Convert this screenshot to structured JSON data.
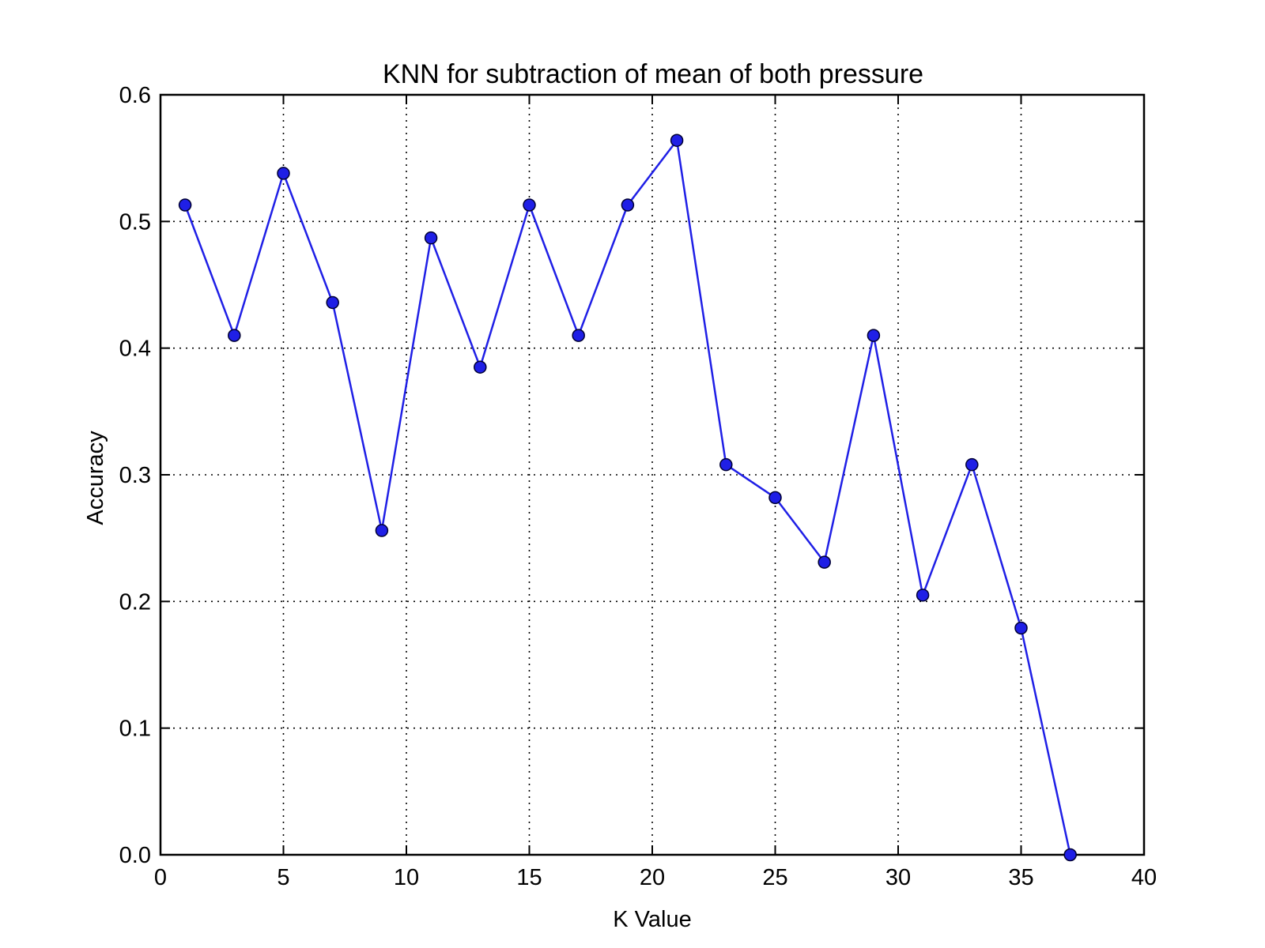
{
  "chart_data": {
    "type": "line",
    "title": "KNN for subtraction of mean of both pressure",
    "xlabel": "K Value",
    "ylabel": "Accuracy",
    "xlim": [
      0,
      40
    ],
    "ylim": [
      0,
      0.6
    ],
    "x_ticks": [
      "0",
      "5",
      "10",
      "15",
      "20",
      "25",
      "30",
      "35",
      "40"
    ],
    "y_ticks": [
      "0.0",
      "0.1",
      "0.2",
      "0.3",
      "0.4",
      "0.5",
      "0.6"
    ],
    "grid": true,
    "series": [
      {
        "color": "#1f1fe6",
        "marker": "filled-circle",
        "x": [
          1,
          3,
          5,
          7,
          9,
          11,
          13,
          15,
          17,
          19,
          21,
          23,
          25,
          27,
          29,
          31,
          33,
          35,
          37
        ],
        "y": [
          0.513,
          0.41,
          0.538,
          0.436,
          0.256,
          0.487,
          0.385,
          0.513,
          0.41,
          0.513,
          0.564,
          0.308,
          0.282,
          0.231,
          0.41,
          0.205,
          0.308,
          0.179,
          0.0
        ]
      }
    ]
  }
}
